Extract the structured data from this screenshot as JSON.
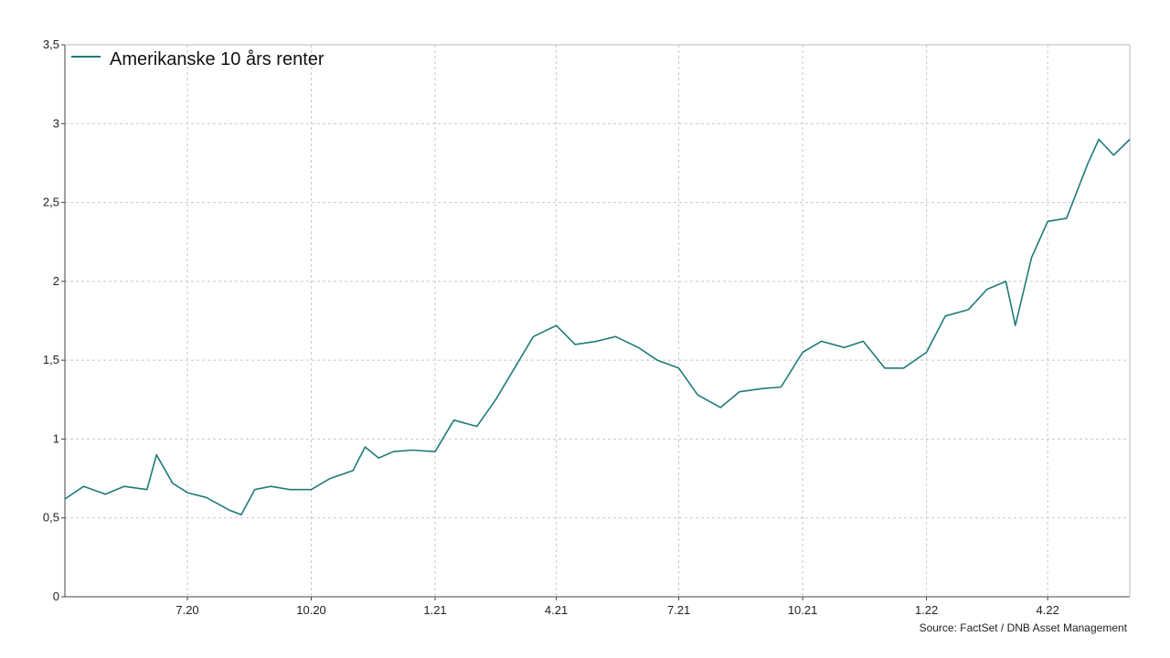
{
  "colors": {
    "line": "#1f7a7a",
    "grid": "#c8c8c8",
    "axis": "#444444"
  },
  "source": "Source: FactSet / DNB Asset Management",
  "chart_data": {
    "type": "line",
    "title": "",
    "xlabel": "",
    "ylabel": "",
    "ylim": [
      0,
      3.5
    ],
    "y_ticks": [
      0,
      0.5,
      1,
      1.5,
      2,
      2.5,
      3,
      3.5
    ],
    "y_tick_labels": [
      "0",
      "0,5",
      "1",
      "1,5",
      "2",
      "2,5",
      "3",
      "3,5"
    ],
    "x_ticks": [
      "2020-07",
      "2020-10",
      "2021-01",
      "2021-04",
      "2021-07",
      "2021-10",
      "2022-01",
      "2022-04"
    ],
    "x_tick_labels": [
      "7.20",
      "10.20",
      "1.21",
      "4.21",
      "7.21",
      "10.21",
      "1.22",
      "4.22"
    ],
    "xlim": [
      "2020-04",
      "2022-06"
    ],
    "grid": true,
    "legend_position": "top-left",
    "series": [
      {
        "name": "Amerikanske 10 års renter",
        "x": [
          "2020-04-01",
          "2020-04-15",
          "2020-05-01",
          "2020-05-15",
          "2020-06-01",
          "2020-06-08",
          "2020-06-20",
          "2020-07-01",
          "2020-07-15",
          "2020-08-01",
          "2020-08-10",
          "2020-08-20",
          "2020-09-01",
          "2020-09-15",
          "2020-10-01",
          "2020-10-15",
          "2020-11-01",
          "2020-11-10",
          "2020-11-20",
          "2020-12-01",
          "2020-12-15",
          "2021-01-01",
          "2021-01-15",
          "2021-02-01",
          "2021-02-15",
          "2021-03-01",
          "2021-03-15",
          "2021-04-01",
          "2021-04-15",
          "2021-05-01",
          "2021-05-15",
          "2021-06-01",
          "2021-06-15",
          "2021-07-01",
          "2021-07-15",
          "2021-08-01",
          "2021-08-15",
          "2021-09-01",
          "2021-09-15",
          "2021-10-01",
          "2021-10-15",
          "2021-11-01",
          "2021-11-15",
          "2021-12-01",
          "2021-12-15",
          "2022-01-01",
          "2022-01-15",
          "2022-02-01",
          "2022-02-15",
          "2022-03-01",
          "2022-03-08",
          "2022-03-20",
          "2022-04-01",
          "2022-04-15",
          "2022-05-01",
          "2022-05-09",
          "2022-05-20",
          "2022-06-01"
        ],
        "values": [
          0.62,
          0.7,
          0.65,
          0.7,
          0.68,
          0.9,
          0.72,
          0.66,
          0.63,
          0.55,
          0.52,
          0.68,
          0.7,
          0.68,
          0.68,
          0.75,
          0.8,
          0.95,
          0.88,
          0.92,
          0.93,
          0.92,
          1.12,
          1.08,
          1.25,
          1.45,
          1.65,
          1.72,
          1.6,
          1.62,
          1.65,
          1.58,
          1.5,
          1.45,
          1.28,
          1.2,
          1.3,
          1.32,
          1.33,
          1.55,
          1.62,
          1.58,
          1.62,
          1.45,
          1.45,
          1.55,
          1.78,
          1.82,
          1.95,
          2.0,
          1.72,
          2.15,
          2.38,
          2.4,
          2.75,
          2.9,
          2.8,
          2.9
        ]
      }
    ]
  }
}
